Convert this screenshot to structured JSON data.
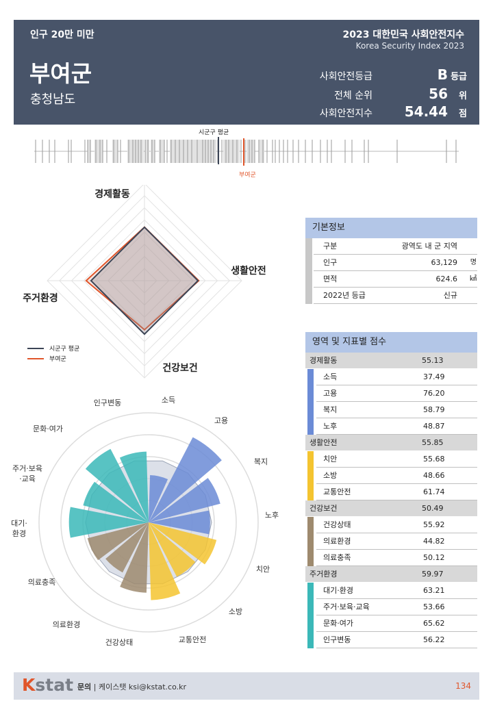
{
  "header": {
    "category": "인구 20만 미만",
    "name": "부여군",
    "province": "충청남도",
    "title": "2023 대한민국 사회안전지수",
    "subtitle": "Korea Security Index 2023",
    "rows": [
      {
        "label": "사회안전등급",
        "value": "B",
        "unit": "등급"
      },
      {
        "label": "전체 순위",
        "value": "56",
        "unit": "위"
      },
      {
        "label": "사회안전지수",
        "value": "54.44",
        "unit": "점"
      }
    ]
  },
  "strip": {
    "avg_label": "시군구 평균",
    "self_label": "부여군",
    "avg_position": 0.885,
    "self_position": 0.97
  },
  "radar": {
    "axes": [
      "경제활동",
      "생활안전",
      "건강보건",
      "주거환경"
    ],
    "avg": [
      55,
      55,
      55,
      55
    ],
    "self": [
      55.13,
      55.85,
      50.49,
      59.97
    ],
    "max": 100
  },
  "legend": {
    "avg": "시군구 평균",
    "self": "부여군"
  },
  "colors": {
    "header_bg": "#485469",
    "accent": "#e0552a",
    "avg_line": "#3c4556",
    "economy": "#6b8bd6",
    "safety": "#f4c430",
    "health": "#9e8a6e",
    "living": "#3bb8b8"
  },
  "info": {
    "title": "기본정보",
    "rows": [
      {
        "key": "구분",
        "value": "광역도 내 군 지역",
        "unit": ""
      },
      {
        "key": "인구",
        "value": "63,129",
        "unit": "명"
      },
      {
        "key": "면적",
        "value": "624.6",
        "unit": "㎢"
      },
      {
        "key": "2022년 등급",
        "value": "신규",
        "unit": ""
      }
    ]
  },
  "scores": {
    "title": "영역 및 지표별 점수",
    "groups": [
      {
        "name": "경제활동",
        "score": "55.13",
        "color": "#6b8bd6",
        "items": [
          {
            "name": "소득",
            "score": "37.49"
          },
          {
            "name": "고용",
            "score": "76.20"
          },
          {
            "name": "복지",
            "score": "58.79"
          },
          {
            "name": "노후",
            "score": "48.87"
          }
        ]
      },
      {
        "name": "생활안전",
        "score": "55.85",
        "color": "#f4c430",
        "items": [
          {
            "name": "치안",
            "score": "55.68"
          },
          {
            "name": "소방",
            "score": "48.66"
          },
          {
            "name": "교통안전",
            "score": "61.74"
          }
        ]
      },
      {
        "name": "건강보건",
        "score": "50.49",
        "color": "#9e8a6e",
        "items": [
          {
            "name": "건강상태",
            "score": "55.92"
          },
          {
            "name": "의료환경",
            "score": "44.82"
          },
          {
            "name": "의료충족",
            "score": "50.12"
          }
        ]
      },
      {
        "name": "주거환경",
        "score": "59.97",
        "color": "#3bb8b8",
        "items": [
          {
            "name": "대기·환경",
            "score": "63.21"
          },
          {
            "name": "주거·보육·교육",
            "score": "53.66"
          },
          {
            "name": "문화·여가",
            "score": "65.62"
          },
          {
            "name": "인구변동",
            "score": "56.22"
          }
        ]
      }
    ]
  },
  "polar": {
    "labels": [
      "소득",
      "고용",
      "복지",
      "노후",
      "치안",
      "소방",
      "교통안전",
      "건강상태",
      "의료환경",
      "의료충족",
      "대기·\n환경",
      "주거·보육\n·교육",
      "문화·여가",
      "인구변동"
    ],
    "values": [
      37.49,
      76.2,
      58.79,
      48.87,
      55.68,
      48.66,
      61.74,
      55.92,
      44.82,
      50.12,
      63.21,
      53.66,
      65.62,
      56.22
    ],
    "avg": [
      50,
      50,
      50,
      50,
      50,
      50,
      50,
      50,
      50,
      50,
      50,
      50,
      50,
      50
    ],
    "colors": [
      "#6b8bd6",
      "#6b8bd6",
      "#6b8bd6",
      "#6b8bd6",
      "#f4c430",
      "#f4c430",
      "#f4c430",
      "#9e8a6e",
      "#9e8a6e",
      "#9e8a6e",
      "#3bb8b8",
      "#3bb8b8",
      "#3bb8b8",
      "#3bb8b8"
    ],
    "max": 100
  },
  "footer": {
    "logo_k": "K",
    "logo_rest": "stat",
    "contact_label": "문의",
    "contact_text": "케이스탯 ksi@kstat.co.kr",
    "page": "134"
  }
}
